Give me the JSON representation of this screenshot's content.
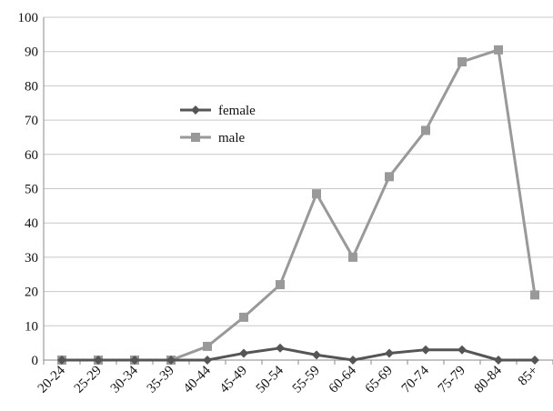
{
  "chart_data": {
    "type": "line",
    "categories": [
      "20-24",
      "25-29",
      "30-34",
      "35-39",
      "40-44",
      "45-49",
      "50-54",
      "55-59",
      "60-64",
      "65-69",
      "70-74",
      "75-79",
      "80-84",
      "85+"
    ],
    "series": [
      {
        "name": "female",
        "values": [
          0,
          0,
          0,
          0,
          0,
          2,
          3.5,
          1.5,
          0,
          2,
          3,
          3,
          0,
          0
        ],
        "color": "#555555",
        "marker": "diamond"
      },
      {
        "name": "male",
        "values": [
          0,
          0,
          0,
          0,
          4,
          12.5,
          22,
          48.5,
          30,
          53.5,
          67,
          87,
          90.5,
          19
        ],
        "color": "#999999",
        "marker": "square"
      }
    ],
    "ylim": [
      0,
      100
    ],
    "yticks": [
      0,
      10,
      20,
      30,
      40,
      50,
      60,
      70,
      80,
      90,
      100
    ],
    "grid": "horizontal",
    "legend_placement": "center-left",
    "title": "",
    "xlabel": "",
    "ylabel": ""
  }
}
